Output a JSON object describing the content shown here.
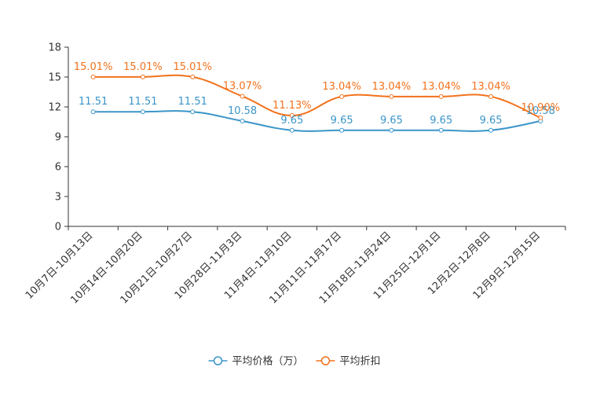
{
  "chart_data": {
    "type": "line",
    "title": "",
    "xlabel": "",
    "ylabel": "",
    "ylim": [
      0,
      18
    ],
    "yticks": [
      0,
      3,
      6,
      9,
      12,
      15,
      18
    ],
    "grid": false,
    "legend_position": "bottom-center",
    "categories": [
      "10月7日-10月13日",
      "10月14日-10月20日",
      "10月21日-10月27日",
      "10月28日-11月3日",
      "11月4日-11月10日",
      "11月11日-11月17日",
      "11月18日-11月24日",
      "11月25日-12月1日",
      "12月2日-12月8日",
      "12月9日-12月15日"
    ],
    "series": [
      {
        "name": "平均价格（万）",
        "color": "#3a95c8",
        "values": [
          11.51,
          11.51,
          11.51,
          10.58,
          9.65,
          9.65,
          9.65,
          9.65,
          9.65,
          10.58
        ],
        "labels": [
          "11.51",
          "11.51",
          "11.51",
          "10.58",
          "9.65",
          "9.65",
          "9.65",
          "9.65",
          "9.65",
          "10.58"
        ]
      },
      {
        "name": "平均折扣",
        "color": "#f2721c",
        "values": [
          15.01,
          15.01,
          15.01,
          13.07,
          11.13,
          13.04,
          13.04,
          13.04,
          13.04,
          10.9
        ],
        "labels": [
          "15.01%",
          "15.01%",
          "15.01%",
          "13.07%",
          "11.13%",
          "13.04%",
          "13.04%",
          "13.04%",
          "13.04%",
          "10.90%"
        ]
      }
    ]
  }
}
